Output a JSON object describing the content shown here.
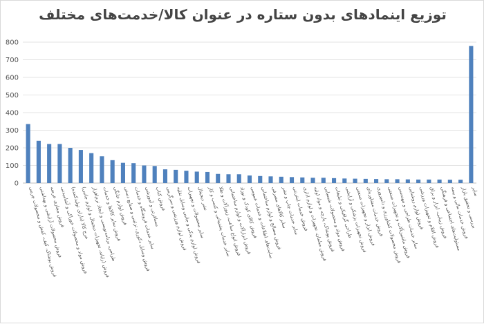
{
  "chart_data": {
    "type": "bar",
    "title": "توزیع اینمادهای بدون ستاره در عنوان کالا/خدمت‌های مختلف",
    "xlabel": "",
    "ylabel": "",
    "ylim": [
      0,
      800
    ],
    "yticks": [
      0,
      100,
      200,
      300,
      400,
      500,
      600,
      700,
      800
    ],
    "grid": true,
    "legend": "none",
    "bar_color": "#4f81bd",
    "categories": [
      "فروش پوشاک، کیف، کفش و محصولات چرمی",
      "فروش محصولات آرایشی و بهداشتی",
      "فروش مجازی عرضه",
      "فروش مواد و محصولات خوراکی و آشامیدنی",
      "خرج کالا (دارای تولیدکننده)",
      "فروش (رایانه، تجهیزات دیجیتال و لوازم جانبی)",
      "طراحی، برنامه‌نویسی و ایجاد نرم‌افزار",
      "فروش سایر کالاها و خدمات",
      "فروش لوازم خانگی",
      "فروش وسایل دکوری، تزئینی و صنایع دستی",
      "سایر خدمات فروشگاه و خدمات",
      "مسافرتی و آموزشی",
      "فروش کتاب",
      "فروش لوازم ورزشی و سرگرمی",
      "فروش لوازم یدکی و جانبی وسایل نقلیه",
      "سایر محصولات و تجهیزات",
      "نشر دیجیتال",
      "سایر خدمات پشتیبانی و کسب و کار",
      "فروش انواع ساعت، زیورآلات و طلا",
      "فروش ابزارآلات و لوازم ساختمانی",
      "فروش کالای کودک و نوزاد",
      "سایت‌های اطلاعات و خدمات عمومی",
      "فروش مصالح و لوازم ساختمانی",
      "سایر کالاهای مصرفی",
      "سایر خدمات چاپ و نشر",
      "فروش خدمات اینترنتی",
      "فروش مبلمان، تجهیزات و لوازم اداری",
      "فروش پوشاک، پارچه و مواد اولیه",
      "فروش مواد و محصولات شیمیایی",
      "طراحی گرافیکی و تبلیغات",
      "فروش تجهیزات پزشکی و آرایشی",
      "فروش ابزار و تجهیزات صنعتی",
      "فروش خدمات مشاوره‌ای",
      "فروش محصولات کشاورزی و دامپروری",
      "فروش ماشین‌آلات و تجهیزات صنعتی",
      "سایر خدمات طراحی و مهندسی",
      "فروش لوازم روشنایی",
      "فروش اقلام و تجهیزات ورزشی",
      "فروش زیبایی، ابزار و یراق",
      "مسئولیت‌های اجتماعی و فرهنگی",
      "فروش خدمات مالی و بیمه",
      "بررسی و تحقیق بازار",
      "سایر"
    ],
    "values": [
      335,
      240,
      222,
      222,
      200,
      188,
      170,
      152,
      130,
      115,
      113,
      100,
      97,
      78,
      75,
      70,
      65,
      63,
      52,
      50,
      50,
      43,
      40,
      38,
      36,
      34,
      32,
      30,
      30,
      28,
      26,
      25,
      24,
      23,
      22,
      22,
      21,
      20,
      20,
      20,
      19,
      19,
      778
    ]
  }
}
